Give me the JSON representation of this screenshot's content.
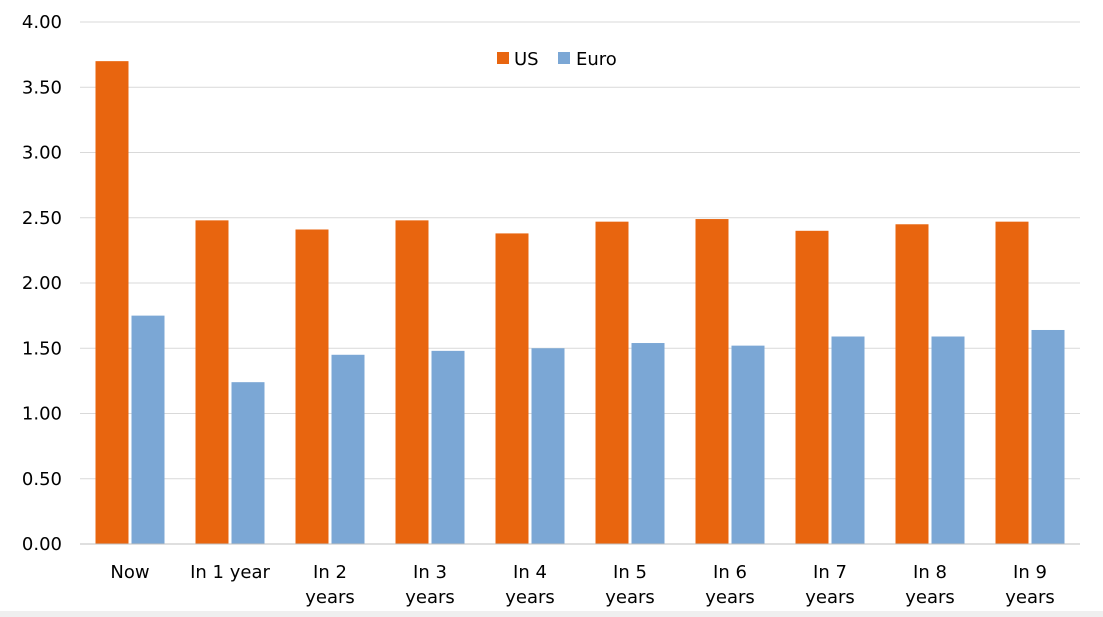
{
  "chart_data": {
    "type": "bar",
    "title": "",
    "xlabel": "",
    "ylabel": "",
    "categories": [
      [
        "Now"
      ],
      [
        "In 1 year"
      ],
      [
        "In 2",
        "years"
      ],
      [
        "In 3",
        "years"
      ],
      [
        "In 4",
        "years"
      ],
      [
        "In 5",
        "years"
      ],
      [
        "In 6",
        "years"
      ],
      [
        "In 7",
        "years"
      ],
      [
        "In 8",
        "years"
      ],
      [
        "In 9",
        "years"
      ]
    ],
    "series": [
      {
        "name": "US",
        "color": "#E8650F",
        "values": [
          3.7,
          2.48,
          2.41,
          2.48,
          2.38,
          2.47,
          2.49,
          2.4,
          2.45,
          2.47
        ]
      },
      {
        "name": "Euro",
        "color": "#7BA7D5",
        "values": [
          1.75,
          1.24,
          1.45,
          1.48,
          1.5,
          1.54,
          1.52,
          1.59,
          1.59,
          1.64
        ]
      }
    ],
    "ylim": [
      0,
      4
    ],
    "yticks": [
      "0.00",
      "0.50",
      "1.00",
      "1.50",
      "2.00",
      "2.50",
      "3.00",
      "3.50",
      "4.00"
    ],
    "grid": true,
    "legend_position": "top-center"
  }
}
